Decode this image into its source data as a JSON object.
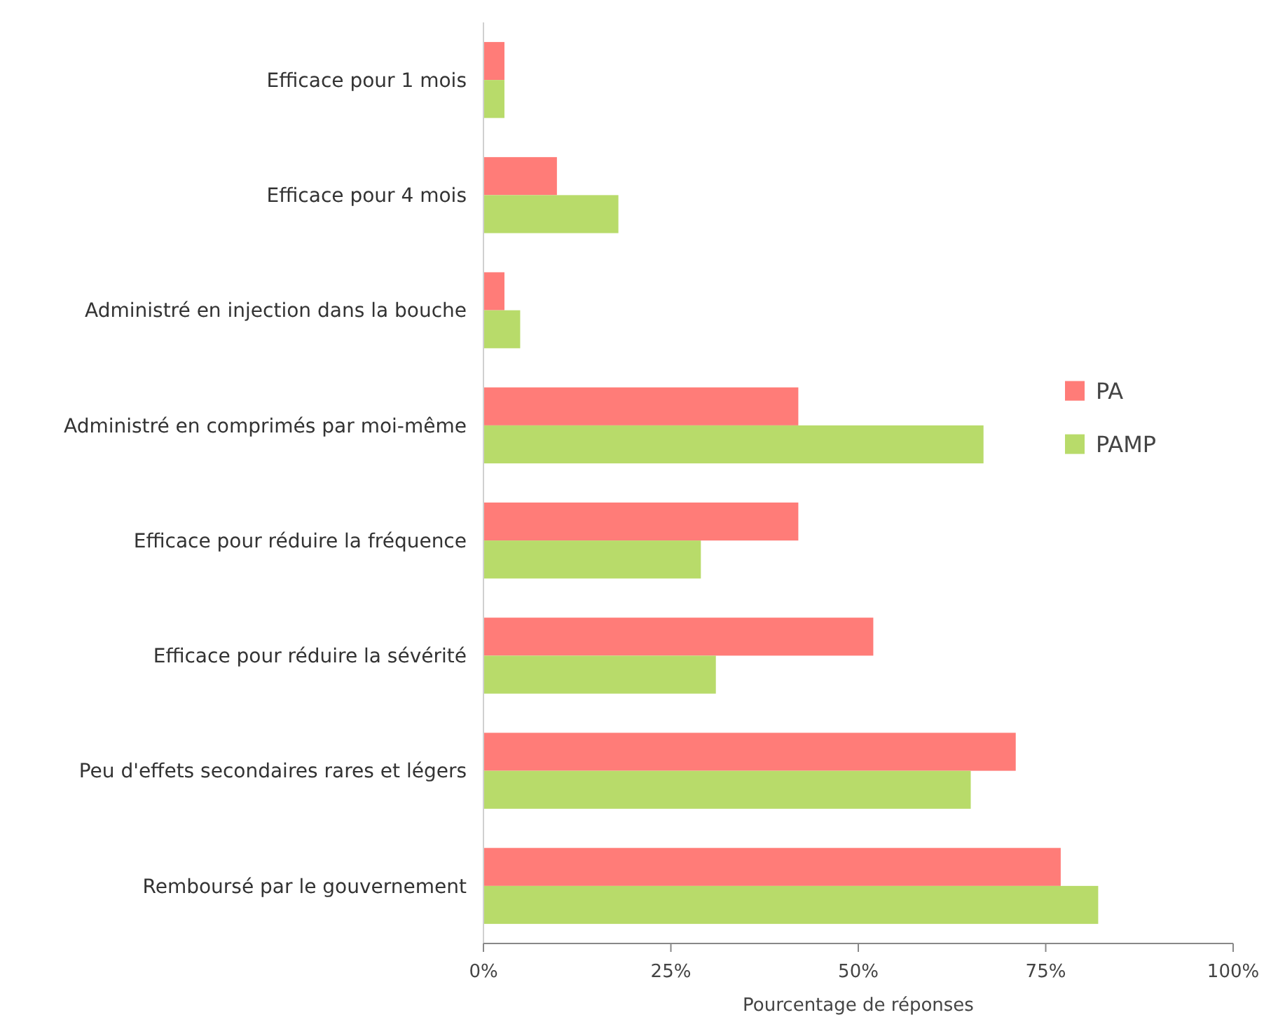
{
  "chart_data": {
    "type": "bar",
    "orientation": "horizontal",
    "xlabel": "Pourcentage de réponses",
    "categories": [
      "Efficace pour 1 mois",
      "Efficace pour 4 mois",
      "Administré en injection dans la bouche",
      "Administré en comprimés par moi-même",
      "Efficace pour réduire la fréquence",
      "Efficace pour réduire la sévérité",
      "Peu d'effets secondaires rares et légers",
      "Remboursé par le gouvernement"
    ],
    "series": [
      {
        "name": "PA",
        "color": "#ff7c78",
        "values": [
          2.8,
          9.8,
          2.8,
          42,
          42,
          52,
          71,
          77
        ]
      },
      {
        "name": "PAMP",
        "color": "#b8db6a",
        "values": [
          2.8,
          18,
          4.9,
          66.7,
          29,
          31,
          65,
          82
        ]
      }
    ],
    "xlim": [
      0,
      100
    ],
    "xticks": [
      {
        "value": 0,
        "label": "0%"
      },
      {
        "value": 25,
        "label": "25%"
      },
      {
        "value": 50,
        "label": "50%"
      },
      {
        "value": 75,
        "label": "75%"
      },
      {
        "value": 100,
        "label": "100%"
      }
    ],
    "legend": "right",
    "grid": false
  }
}
